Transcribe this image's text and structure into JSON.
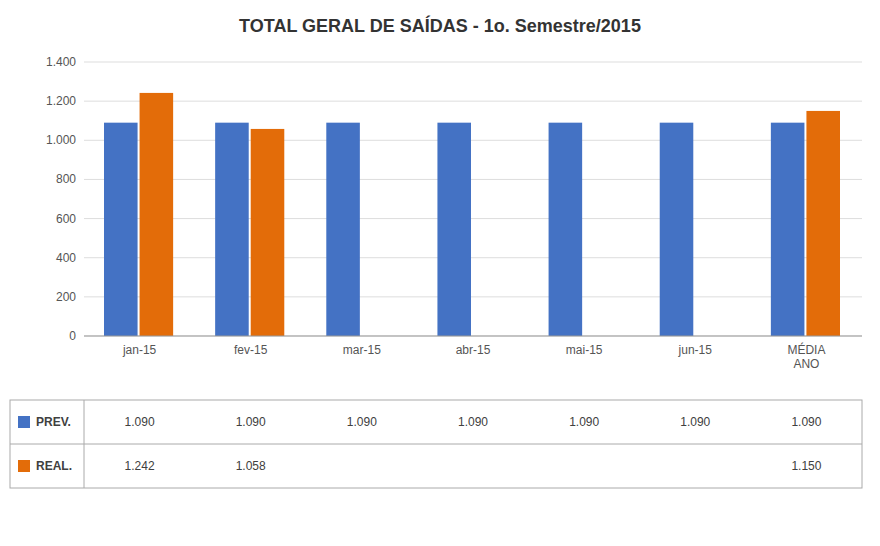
{
  "chart_data": {
    "type": "bar",
    "title": "TOTAL GERAL DE SAÍDAS - 1o. Semestre/2015",
    "categories": [
      "jan-15",
      "fev-15",
      "mar-15",
      "abr-15",
      "mai-15",
      "jun-15",
      "MÉDIA\nANO"
    ],
    "series": [
      {
        "name": "PREV.",
        "color": "#4472C4",
        "values": [
          1090,
          1090,
          1090,
          1090,
          1090,
          1090,
          1090
        ],
        "value_labels": [
          "1.090",
          "1.090",
          "1.090",
          "1.090",
          "1.090",
          "1.090",
          "1.090"
        ]
      },
      {
        "name": "REAL.",
        "color": "#E36C09",
        "values": [
          1242,
          1058,
          null,
          null,
          null,
          null,
          1150
        ],
        "value_labels": [
          "1.242",
          "1.058",
          null,
          null,
          null,
          null,
          "1.150"
        ]
      }
    ],
    "ylim": [
      0,
      1400
    ],
    "yticks": [
      0,
      200,
      400,
      600,
      800,
      {
        "value": 1000,
        "label": "1.000"
      },
      {
        "value": 1200,
        "label": "1.200"
      },
      {
        "value": 1400,
        "label": "1.400"
      }
    ],
    "grid": true,
    "data_labels": true
  }
}
